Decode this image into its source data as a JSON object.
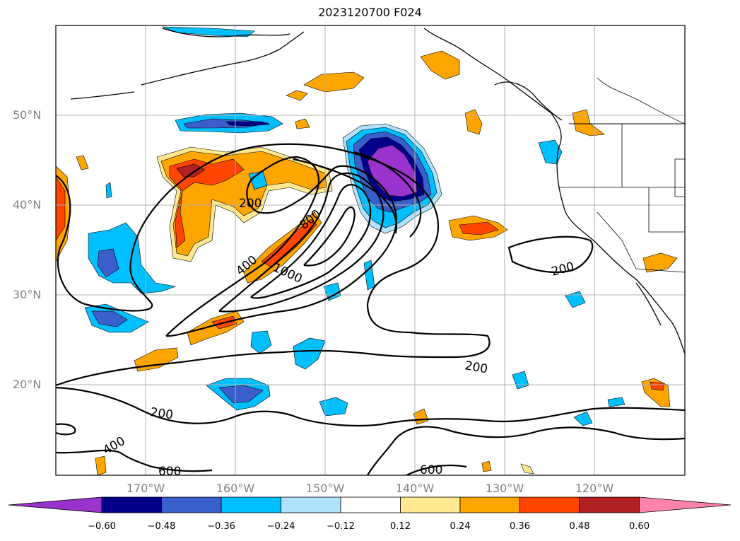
{
  "title": "2023120700 F024",
  "lat_labels": [
    "50°N",
    "40°N",
    "30°N",
    "20°N"
  ],
  "lon_labels": [
    "170°W",
    "160°W",
    "150°W",
    "140°W",
    "130°W",
    "120°W"
  ],
  "contour_labels": [
    "200",
    "800",
    "400",
    "1000",
    "200",
    "200",
    "200",
    "400",
    "600",
    "600"
  ],
  "colorbar": {
    "ticks": [
      "−0.60",
      "−0.48",
      "−0.36",
      "−0.24",
      "−0.12",
      "0.12",
      "0.24",
      "0.36",
      "0.48",
      "0.60"
    ],
    "colors": [
      "#9a32cd",
      "#00008b",
      "#3a5fcd",
      "#00bfff",
      "#afe2fb",
      "#ffffff",
      "#ffe890",
      "#ffa500",
      "#ff4500",
      "#b22222",
      "#ff83aa"
    ]
  }
}
